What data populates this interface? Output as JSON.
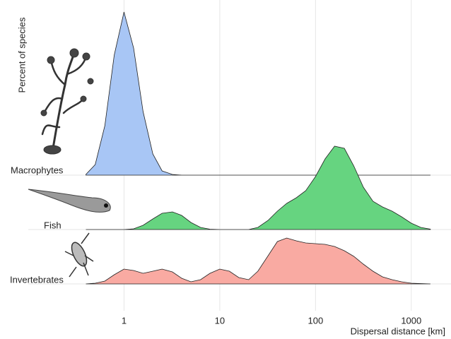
{
  "chart_data": {
    "type": "ridgeline",
    "y_label": "Percent of species",
    "x_label": "Dispersal distance [km]",
    "x_scale": "log",
    "xlim": [
      0.1,
      2600
    ],
    "xticks": [
      1,
      10,
      100,
      1000
    ],
    "grid": true,
    "x": [
      0.4,
      0.5,
      0.63,
      0.79,
      1,
      1.26,
      1.58,
      2,
      2.5,
      3.2,
      4,
      5,
      6.3,
      7.9,
      10,
      12.6,
      15.8,
      20,
      25,
      32,
      40,
      50,
      63,
      79,
      100,
      126,
      158,
      200,
      251,
      316,
      398,
      501,
      631,
      794,
      1000,
      1259,
      1585
    ],
    "series": [
      {
        "name": "Macrophytes",
        "color": "#a8c6f5",
        "values": [
          0.1,
          1.5,
          7,
          17,
          23.1,
          18,
          9,
          3,
          0.6,
          0.1,
          0,
          0,
          0,
          0,
          0,
          0,
          0,
          0,
          0,
          0,
          0,
          0,
          0,
          0,
          0,
          0,
          0,
          0,
          0,
          0,
          0,
          0,
          0,
          0,
          0,
          0,
          0
        ]
      },
      {
        "name": "Fish",
        "color": "#66d480",
        "values": [
          0,
          0,
          0,
          0,
          0,
          0.1,
          0.6,
          1.5,
          2.3,
          2.5,
          2.0,
          1.0,
          0.3,
          0.05,
          0,
          0,
          0,
          0,
          0.3,
          1.3,
          2.6,
          3.7,
          4.5,
          5.5,
          7.5,
          10,
          11.8,
          11.5,
          9,
          6,
          4,
          3.2,
          2.6,
          1.8,
          0.9,
          0.3,
          0.05
        ]
      },
      {
        "name": "Invertebrates",
        "color": "#f9aaa2",
        "values": [
          0,
          0.1,
          0.4,
          1.3,
          2.1,
          1.9,
          1.5,
          1.8,
          2.1,
          1.7,
          0.8,
          0.3,
          0.6,
          1.5,
          2.1,
          1.8,
          0.9,
          0.6,
          1.8,
          4.0,
          6.0,
          6.5,
          6.1,
          5.8,
          5.7,
          5.6,
          5.3,
          4.7,
          3.9,
          2.8,
          1.8,
          1.0,
          0.6,
          0.3,
          0.1,
          0.05,
          0
        ]
      }
    ]
  }
}
